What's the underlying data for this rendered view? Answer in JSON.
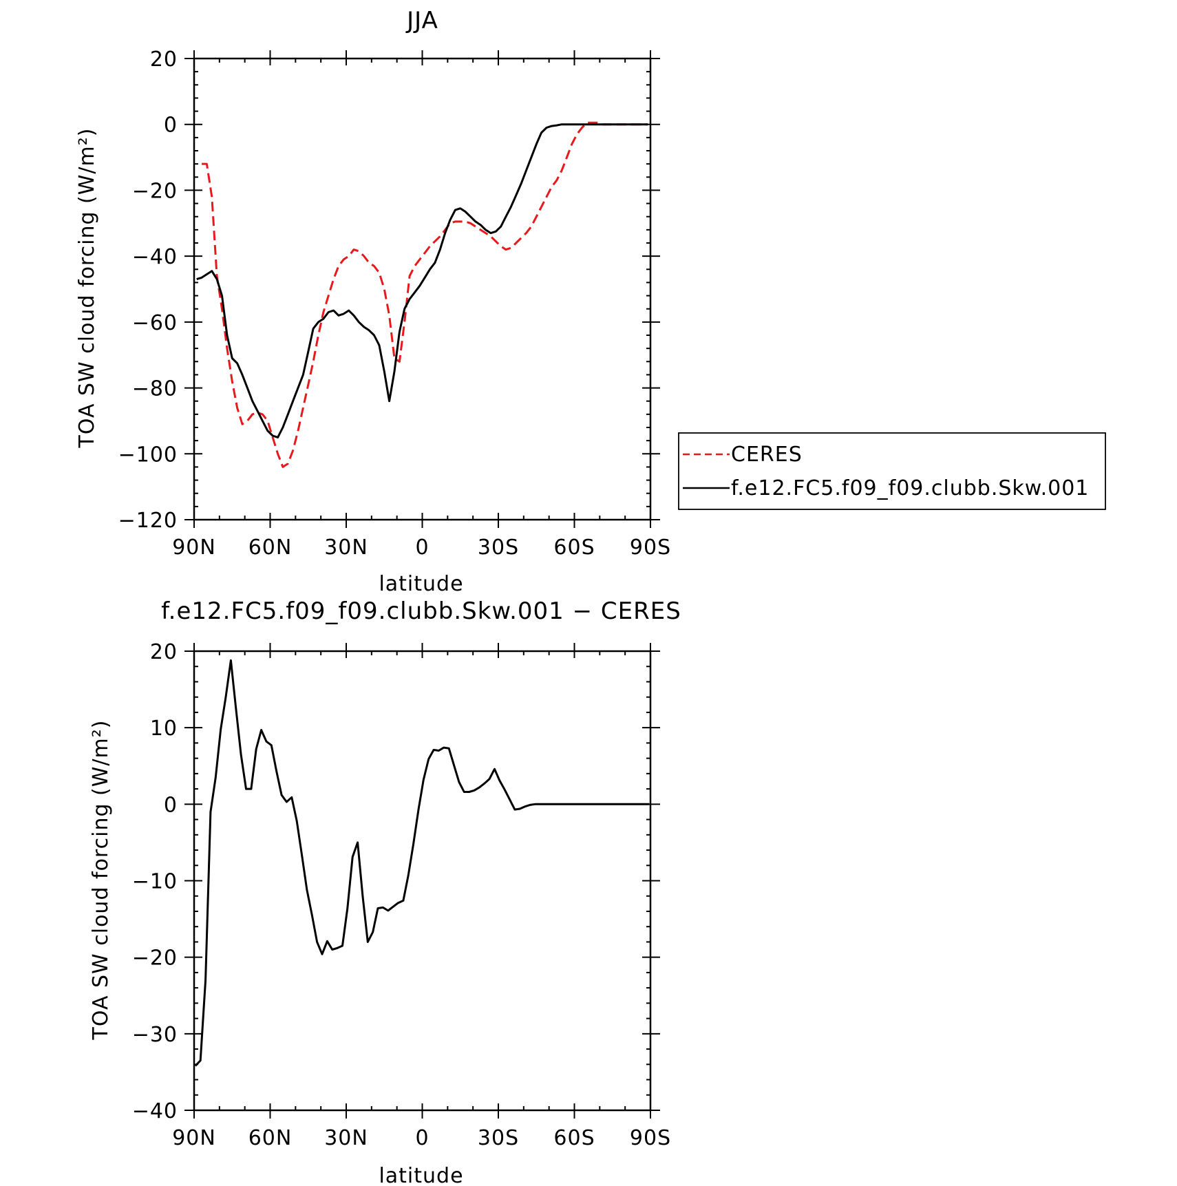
{
  "chart_data": [
    {
      "type": "line",
      "title": "JJA",
      "xlabel": "latitude",
      "ylabel": "TOA SW cloud forcing (W/m²)",
      "xlim": [
        90,
        -90
      ],
      "ylim": [
        -120,
        20
      ],
      "x_ticks": [
        90,
        60,
        30,
        0,
        -30,
        -60,
        -90
      ],
      "x_tick_labels": [
        "90N",
        "60N",
        "30N",
        "0",
        "30S",
        "60S",
        "90S"
      ],
      "y_ticks": [
        20,
        0,
        -20,
        -40,
        -60,
        -80,
        -100,
        -120
      ],
      "y_tick_labels": [
        "20",
        "0",
        "−20",
        "−40",
        "−60",
        "−80",
        "−100",
        "−120"
      ],
      "legend": "outside-right",
      "series": [
        {
          "name": "CERES",
          "color": "#e8191c",
          "dash": "dashed",
          "x": [
            87,
            85,
            83,
            81,
            79,
            77,
            75,
            73,
            71,
            69,
            67,
            65,
            63,
            61,
            59,
            57,
            55,
            53,
            51,
            49,
            47,
            45,
            43,
            41,
            39,
            37,
            35,
            33,
            31,
            29,
            27,
            25,
            23,
            21,
            19,
            17,
            15,
            13,
            11,
            9,
            7,
            5,
            3,
            1,
            -1,
            -3,
            -5,
            -7,
            -9,
            -11,
            -13,
            -15,
            -17,
            -19,
            -21,
            -23,
            -25,
            -27,
            -29,
            -31,
            -33,
            -35,
            -37,
            -39,
            -41,
            -43,
            -45,
            -47,
            -49,
            -51,
            -53,
            -55,
            -57,
            -59,
            -61,
            -63,
            -65,
            -67,
            -69,
            -71,
            -73,
            -75,
            -77,
            -79,
            -81,
            -83,
            -85,
            -87,
            -89
          ],
          "y": [
            -12,
            -12,
            -22,
            -46,
            -56,
            -68,
            -78,
            -86,
            -91,
            -90,
            -88,
            -87.5,
            -88,
            -90,
            -95,
            -100,
            -104,
            -103,
            -99,
            -93,
            -86,
            -79,
            -72,
            -64,
            -57,
            -52,
            -47,
            -43,
            -41,
            -40,
            -38,
            -38.5,
            -40,
            -42,
            -43,
            -45,
            -50,
            -58,
            -71,
            -72,
            -60,
            -46,
            -43,
            -41,
            -39,
            -37,
            -35.5,
            -34,
            -32,
            -30,
            -29.5,
            -29.5,
            -29.5,
            -30,
            -31,
            -32,
            -33,
            -34,
            -35.5,
            -37,
            -38,
            -37.5,
            -36,
            -34.5,
            -33,
            -31,
            -28,
            -25,
            -22,
            -19,
            -17,
            -14,
            -10,
            -6,
            -3,
            -1,
            0.5,
            0.5,
            0.5,
            0,
            0,
            0,
            0,
            0,
            0,
            0,
            0,
            0,
            0
          ]
        },
        {
          "name": "f.e12.FC5.f09_f09.clubb.Skw.001",
          "color": "#000000",
          "dash": "solid",
          "x": [
            89,
            87,
            85,
            83,
            81,
            79,
            77,
            75,
            73,
            71,
            69,
            67,
            65,
            63,
            61,
            59,
            57,
            55,
            53,
            51,
            49,
            47,
            45,
            43,
            41,
            39,
            37,
            35,
            33,
            31,
            29,
            27,
            25,
            23,
            21,
            19,
            17,
            15,
            13,
            11,
            9,
            7,
            5,
            3,
            1,
            -1,
            -3,
            -5,
            -7,
            -9,
            -11,
            -13,
            -15,
            -17,
            -19,
            -21,
            -23,
            -25,
            -27,
            -29,
            -31,
            -33,
            -35,
            -37,
            -39,
            -41,
            -43,
            -45,
            -47,
            -49,
            -51,
            -53,
            -55,
            -57,
            -59,
            -61,
            -63,
            -65,
            -67,
            -69,
            -71,
            -73,
            -75,
            -77,
            -79,
            -81,
            -83,
            -85,
            -87,
            -89
          ],
          "y": [
            -47,
            -46.5,
            -45.5,
            -44.5,
            -47,
            -52,
            -64,
            -71,
            -72.5,
            -76,
            -80,
            -84,
            -87,
            -90,
            -93,
            -94.5,
            -95,
            -92,
            -88,
            -84,
            -80,
            -76,
            -69,
            -62,
            -60,
            -59,
            -57,
            -56.5,
            -58,
            -57.5,
            -56.5,
            -58,
            -60,
            -61.5,
            -62.5,
            -64,
            -67,
            -75,
            -84,
            -75,
            -63,
            -56,
            -53,
            -51,
            -49,
            -46.5,
            -44,
            -42,
            -38,
            -33,
            -29,
            -26,
            -25.5,
            -26.5,
            -28,
            -29.5,
            -30.5,
            -32,
            -33,
            -32.5,
            -31,
            -28,
            -25,
            -21.5,
            -18,
            -14,
            -10,
            -6,
            -2.5,
            -1,
            -0.5,
            -0.3,
            0,
            0,
            0,
            0,
            0,
            0,
            0,
            0,
            0,
            0,
            0,
            0,
            0,
            0,
            0,
            0,
            0,
            0
          ]
        }
      ]
    },
    {
      "type": "line",
      "title": "f.e12.FC5.f09_f09.clubb.Skw.001 − CERES",
      "xlabel": "latitude",
      "ylabel": "TOA SW cloud forcing (W/m²)",
      "xlim": [
        90,
        -90
      ],
      "ylim": [
        -40,
        20
      ],
      "x_ticks": [
        90,
        60,
        30,
        0,
        -30,
        -60,
        -90
      ],
      "x_tick_labels": [
        "90N",
        "60N",
        "30N",
        "0",
        "30S",
        "60S",
        "90S"
      ],
      "y_ticks": [
        20,
        10,
        0,
        -10,
        -20,
        -30,
        -40
      ],
      "y_tick_labels": [
        "20",
        "10",
        "0",
        "−10",
        "−20",
        "−30",
        "−40"
      ],
      "series": [
        {
          "color": "#000000",
          "dash": "solid",
          "x": [
            89.5,
            87.5,
            85.5,
            83.5,
            81.5,
            79.5,
            77.5,
            75.5,
            73.5,
            71.5,
            69.5,
            67.5,
            65.5,
            63.5,
            61.5,
            59.5,
            57.5,
            55.5,
            53.5,
            51.5,
            49.5,
            47.5,
            45.5,
            43.5,
            41.5,
            39.5,
            37.5,
            35.5,
            33.5,
            31.5,
            29.5,
            27.5,
            25.5,
            23.5,
            21.5,
            19.5,
            17.5,
            15.5,
            13.5,
            11.5,
            9.5,
            7.5,
            5.5,
            3.5,
            1.5,
            -0.5,
            -2.5,
            -4.5,
            -6.5,
            -8.5,
            -10.5,
            -12.5,
            -14.5,
            -16.5,
            -18.5,
            -20.5,
            -22.5,
            -24.5,
            -26.5,
            -28.5,
            -30.5,
            -32.5,
            -34.5,
            -36.5,
            -38.5,
            -40.5,
            -42.5,
            -44.5,
            -46.5,
            -48.5,
            -50.5,
            -52.5,
            -54.5,
            -56.5,
            -58.5,
            -60.5,
            -62.5,
            -64.5,
            -66.5,
            -68.5,
            -70.5,
            -72.5,
            -74.5,
            -76.5,
            -78.5,
            -80.5,
            -82.5,
            -84.5,
            -86.5,
            -88.5,
            -89.5
          ],
          "y": [
            -34.2,
            -33.5,
            -23,
            -1,
            3.5,
            9.8,
            14,
            18.8,
            12.5,
            6.5,
            2,
            2,
            7.2,
            9.7,
            8.2,
            7.7,
            4.3,
            1.2,
            0.3,
            0.9,
            -2.2,
            -6.6,
            -11.2,
            -14.5,
            -18,
            -19.6,
            -17.9,
            -19,
            -18.8,
            -18.5,
            -13.6,
            -6.9,
            -5,
            -12,
            -18,
            -16.7,
            -13.6,
            -13.5,
            -13.9,
            -13.4,
            -12.9,
            -12.6,
            -9.3,
            -5.2,
            -0.7,
            3.2,
            5.9,
            7.1,
            7,
            7.4,
            7.3,
            5.1,
            2.9,
            1.6,
            1.6,
            1.8,
            2.2,
            2.7,
            3.3,
            4.6,
            3.1,
            1.9,
            0.6,
            -0.7,
            -0.6,
            -0.3,
            -0.1,
            0,
            0,
            0,
            0,
            0,
            0,
            0,
            0,
            0,
            0,
            0,
            0,
            0,
            0,
            0,
            0,
            0,
            0,
            0,
            0,
            0,
            0,
            0,
            0
          ]
        }
      ]
    }
  ]
}
